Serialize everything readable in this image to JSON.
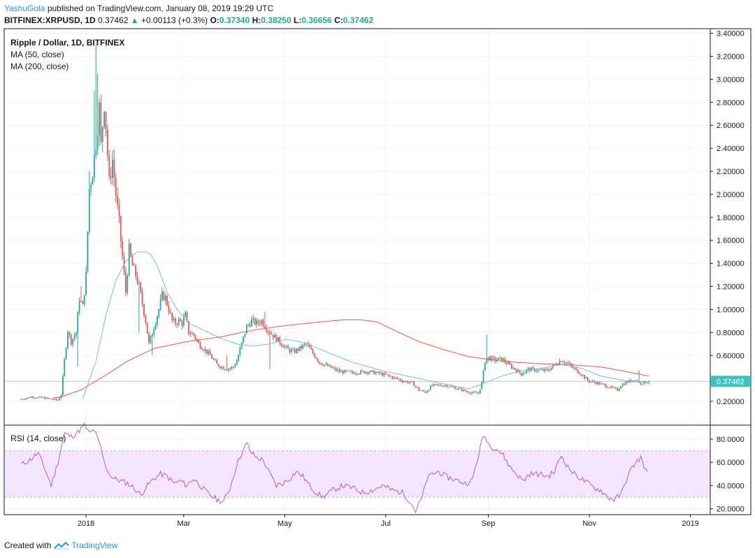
{
  "header": {
    "author": "YashuGola",
    "published": "published on TradingView.com, January 08, 2019 19:29 UTC",
    "symbol": "BITFINEX:XRPUSD, 1D",
    "last": "0.37462",
    "change_arrow": "▲",
    "change": "+0.00113 (+0.3%)",
    "o_label": "O:",
    "o": "0.37340",
    "h_label": "H:",
    "h": "0.38250",
    "l_label": "L:",
    "l": "0.36656",
    "c_label": "C:",
    "c": "0.37462"
  },
  "legend": {
    "title": "Ripple / Dollar, 1D, BITFINEX",
    "ma50": "MA (50, close)",
    "ma200": "MA (200, close)",
    "rsi": "RSI (14, close)"
  },
  "footer": {
    "created": "Created with",
    "brand": "TradingView"
  },
  "colors": {
    "up": "#26a69a",
    "down": "#ef5350",
    "ma50": "#7bb9dd",
    "ma200": "#f0524a",
    "rsi": "#b45bc8",
    "rsi_band": "#f3e5fb",
    "last_price_bg": "#3ec1c3",
    "brand": "#2196f3"
  },
  "chart_data": [
    {
      "type": "candlestick",
      "title": "Ripple / Dollar, 1D, BITFINEX",
      "price_axis": {
        "ticks": [
          "3.40000",
          "3.20000",
          "3.00000",
          "2.80000",
          "2.60000",
          "2.40000",
          "2.20000",
          "2.00000",
          "1.80000",
          "1.60000",
          "1.40000",
          "1.20000",
          "1.00000",
          "0.80000",
          "0.60000",
          "0.20000"
        ],
        "tick_values": [
          3.4,
          3.2,
          3.0,
          2.8,
          2.6,
          2.4,
          2.2,
          2.0,
          1.8,
          1.6,
          1.4,
          1.2,
          1.0,
          0.8,
          0.6,
          0.2
        ],
        "range": [
          -0.0,
          3.44
        ]
      },
      "time_axis": {
        "labels": [
          "2018",
          "Mar",
          "May",
          "Jul",
          "Sep",
          "Nov",
          "2019"
        ],
        "label_day_index": [
          39,
          98,
          159,
          220,
          282,
          343,
          404
        ],
        "day_range": [
          -10,
          416
        ]
      },
      "last_price_label": "0.37462",
      "last_price": 0.37462,
      "price_keyframes": [
        [
          0,
          0.22
        ],
        [
          6,
          0.24
        ],
        [
          14,
          0.23
        ],
        [
          22,
          0.21
        ],
        [
          24,
          0.26
        ],
        [
          26,
          0.56
        ],
        [
          28,
          0.82
        ],
        [
          30,
          0.72
        ],
        [
          33,
          0.8
        ],
        [
          35,
          1.1
        ],
        [
          37,
          1.02
        ],
        [
          39,
          1.3
        ],
        [
          41,
          2.05
        ],
        [
          43,
          2.2
        ],
        [
          45,
          2.45
        ],
        [
          47,
          2.75
        ],
        [
          48,
          2.42
        ],
        [
          50,
          2.8
        ],
        [
          51,
          2.6
        ],
        [
          53,
          2.1
        ],
        [
          55,
          2.3
        ],
        [
          57,
          2.0
        ],
        [
          59,
          1.75
        ],
        [
          61,
          1.45
        ],
        [
          63,
          1.15
        ],
        [
          65,
          1.52
        ],
        [
          67,
          1.38
        ],
        [
          69,
          1.3
        ],
        [
          71,
          1.2
        ],
        [
          73,
          1.05
        ],
        [
          75,
          0.9
        ],
        [
          77,
          0.7
        ],
        [
          79,
          0.8
        ],
        [
          81,
          0.9
        ],
        [
          83,
          1.0
        ],
        [
          85,
          1.12
        ],
        [
          87,
          1.1
        ],
        [
          89,
          1.0
        ],
        [
          91,
          0.9
        ],
        [
          93,
          0.88
        ],
        [
          95,
          0.9
        ],
        [
          97,
          0.88
        ],
        [
          99,
          0.95
        ],
        [
          101,
          0.8
        ],
        [
          104,
          0.78
        ],
        [
          107,
          0.7
        ],
        [
          110,
          0.66
        ],
        [
          114,
          0.6
        ],
        [
          118,
          0.52
        ],
        [
          124,
          0.48
        ],
        [
          128,
          0.5
        ],
        [
          130,
          0.55
        ],
        [
          133,
          0.7
        ],
        [
          136,
          0.85
        ],
        [
          139,
          0.9
        ],
        [
          142,
          0.88
        ],
        [
          145,
          0.9
        ],
        [
          147,
          0.86
        ],
        [
          150,
          0.8
        ],
        [
          153,
          0.76
        ],
        [
          156,
          0.72
        ],
        [
          160,
          0.66
        ],
        [
          164,
          0.63
        ],
        [
          168,
          0.66
        ],
        [
          172,
          0.7
        ],
        [
          176,
          0.62
        ],
        [
          180,
          0.54
        ],
        [
          186,
          0.5
        ],
        [
          192,
          0.46
        ],
        [
          200,
          0.45
        ],
        [
          210,
          0.46
        ],
        [
          220,
          0.43
        ],
        [
          230,
          0.38
        ],
        [
          236,
          0.36
        ],
        [
          240,
          0.3
        ],
        [
          244,
          0.28
        ],
        [
          248,
          0.34
        ],
        [
          256,
          0.34
        ],
        [
          264,
          0.31
        ],
        [
          270,
          0.28
        ],
        [
          276,
          0.27
        ],
        [
          278,
          0.36
        ],
        [
          280,
          0.55
        ],
        [
          282,
          0.58
        ],
        [
          286,
          0.56
        ],
        [
          290,
          0.57
        ],
        [
          296,
          0.5
        ],
        [
          302,
          0.44
        ],
        [
          306,
          0.48
        ],
        [
          312,
          0.47
        ],
        [
          318,
          0.47
        ],
        [
          322,
          0.52
        ],
        [
          326,
          0.56
        ],
        [
          330,
          0.53
        ],
        [
          334,
          0.48
        ],
        [
          338,
          0.44
        ],
        [
          342,
          0.38
        ],
        [
          348,
          0.36
        ],
        [
          354,
          0.33
        ],
        [
          360,
          0.3
        ],
        [
          362,
          0.34
        ],
        [
          366,
          0.37
        ],
        [
          370,
          0.39
        ],
        [
          374,
          0.36
        ],
        [
          379,
          0.375
        ]
      ],
      "ma50_keyframes": [
        [
          37,
          0.22
        ],
        [
          45,
          0.55
        ],
        [
          51,
          0.95
        ],
        [
          57,
          1.25
        ],
        [
          63,
          1.42
        ],
        [
          70,
          1.5
        ],
        [
          75,
          1.5
        ],
        [
          78,
          1.48
        ],
        [
          82,
          1.38
        ],
        [
          88,
          1.15
        ],
        [
          94,
          1.0
        ],
        [
          101,
          0.88
        ],
        [
          110,
          0.82
        ],
        [
          120,
          0.75
        ],
        [
          130,
          0.7
        ],
        [
          140,
          0.68
        ],
        [
          150,
          0.7
        ],
        [
          160,
          0.74
        ],
        [
          168,
          0.72
        ],
        [
          176,
          0.68
        ],
        [
          186,
          0.62
        ],
        [
          200,
          0.54
        ],
        [
          220,
          0.46
        ],
        [
          240,
          0.4
        ],
        [
          256,
          0.35
        ],
        [
          270,
          0.31
        ],
        [
          280,
          0.36
        ],
        [
          290,
          0.42
        ],
        [
          300,
          0.46
        ],
        [
          310,
          0.48
        ],
        [
          326,
          0.52
        ],
        [
          338,
          0.49
        ],
        [
          350,
          0.42
        ],
        [
          365,
          0.38
        ],
        [
          379,
          0.37
        ]
      ],
      "ma200_keyframes": [
        [
          19,
          0.23
        ],
        [
          24,
          0.24
        ],
        [
          36,
          0.3
        ],
        [
          50,
          0.42
        ],
        [
          64,
          0.55
        ],
        [
          80,
          0.66
        ],
        [
          100,
          0.72
        ],
        [
          120,
          0.76
        ],
        [
          140,
          0.82
        ],
        [
          160,
          0.86
        ],
        [
          180,
          0.89
        ],
        [
          195,
          0.91
        ],
        [
          205,
          0.91
        ],
        [
          215,
          0.89
        ],
        [
          225,
          0.82
        ],
        [
          240,
          0.72
        ],
        [
          255,
          0.65
        ],
        [
          270,
          0.59
        ],
        [
          290,
          0.55
        ],
        [
          310,
          0.53
        ],
        [
          330,
          0.52
        ],
        [
          350,
          0.5
        ],
        [
          365,
          0.46
        ],
        [
          379,
          0.42
        ]
      ],
      "spike_highs": [
        [
          36,
          1.2
        ],
        [
          41,
          2.2
        ],
        [
          44,
          2.9
        ],
        [
          45,
          3.3
        ],
        [
          46,
          3.05
        ],
        [
          48,
          2.85
        ],
        [
          124,
          0.6
        ],
        [
          147,
          0.98
        ],
        [
          281,
          0.78
        ],
        [
          373,
          0.47
        ]
      ],
      "spike_lows": [
        [
          34,
          0.5
        ],
        [
          71,
          0.8
        ],
        [
          79,
          0.6
        ],
        [
          150,
          0.48
        ]
      ],
      "ma_lines": [
        "MA (50, close)",
        "MA (200, close)"
      ]
    },
    {
      "type": "line",
      "title": "RSI (14, close)",
      "y_axis": {
        "ticks": [
          "80.0000",
          "60.0000",
          "40.0000",
          "20.0000"
        ],
        "tick_values": [
          80,
          60,
          40,
          20
        ],
        "range": [
          15,
          92
        ]
      },
      "band": [
        30,
        70
      ],
      "rsi_keyframes": [
        [
          0,
          58
        ],
        [
          5,
          62
        ],
        [
          10,
          68
        ],
        [
          14,
          55
        ],
        [
          18,
          40
        ],
        [
          22,
          60
        ],
        [
          26,
          85
        ],
        [
          30,
          82
        ],
        [
          34,
          86
        ],
        [
          38,
          92
        ],
        [
          41,
          85
        ],
        [
          44,
          88
        ],
        [
          46,
          80
        ],
        [
          48,
          72
        ],
        [
          50,
          60
        ],
        [
          53,
          50
        ],
        [
          56,
          46
        ],
        [
          60,
          44
        ],
        [
          64,
          42
        ],
        [
          68,
          38
        ],
        [
          72,
          32
        ],
        [
          76,
          40
        ],
        [
          80,
          46
        ],
        [
          84,
          50
        ],
        [
          88,
          48
        ],
        [
          92,
          42
        ],
        [
          96,
          44
        ],
        [
          100,
          40
        ],
        [
          104,
          46
        ],
        [
          108,
          40
        ],
        [
          112,
          34
        ],
        [
          118,
          28
        ],
        [
          122,
          26
        ],
        [
          126,
          38
        ],
        [
          130,
          58
        ],
        [
          133,
          68
        ],
        [
          136,
          76
        ],
        [
          139,
          68
        ],
        [
          142,
          64
        ],
        [
          146,
          62
        ],
        [
          150,
          50
        ],
        [
          154,
          40
        ],
        [
          158,
          42
        ],
        [
          162,
          46
        ],
        [
          166,
          52
        ],
        [
          170,
          48
        ],
        [
          174,
          40
        ],
        [
          178,
          34
        ],
        [
          182,
          30
        ],
        [
          188,
          36
        ],
        [
          194,
          40
        ],
        [
          200,
          38
        ],
        [
          206,
          34
        ],
        [
          212,
          36
        ],
        [
          218,
          40
        ],
        [
          224,
          36
        ],
        [
          230,
          34
        ],
        [
          235,
          26
        ],
        [
          238,
          18
        ],
        [
          242,
          30
        ],
        [
          245,
          46
        ],
        [
          248,
          50
        ],
        [
          252,
          52
        ],
        [
          256,
          48
        ],
        [
          260,
          46
        ],
        [
          264,
          44
        ],
        [
          268,
          42
        ],
        [
          272,
          44
        ],
        [
          275,
          60
        ],
        [
          277,
          72
        ],
        [
          279,
          83
        ],
        [
          281,
          80
        ],
        [
          283,
          74
        ],
        [
          287,
          72
        ],
        [
          291,
          66
        ],
        [
          295,
          56
        ],
        [
          299,
          50
        ],
        [
          303,
          44
        ],
        [
          307,
          50
        ],
        [
          312,
          50
        ],
        [
          318,
          48
        ],
        [
          322,
          52
        ],
        [
          326,
          66
        ],
        [
          330,
          56
        ],
        [
          334,
          50
        ],
        [
          338,
          46
        ],
        [
          342,
          42
        ],
        [
          346,
          38
        ],
        [
          350,
          36
        ],
        [
          354,
          30
        ],
        [
          358,
          28
        ],
        [
          362,
          32
        ],
        [
          366,
          48
        ],
        [
          370,
          58
        ],
        [
          374,
          64
        ],
        [
          378,
          50
        ]
      ]
    }
  ]
}
